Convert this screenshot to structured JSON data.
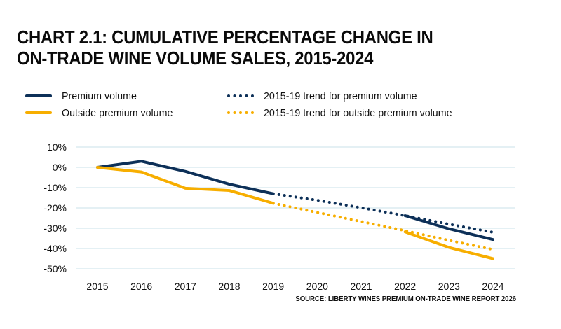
{
  "title": "CHART 2.1: CUMULATIVE PERCENTAGE CHANGE IN ON-TRADE WINE VOLUME SALES, 2015-2024",
  "title_lines": [
    "CHART 2.1: CUMULATIVE PERCENTAGE CHANGE IN",
    "ON-TRADE WINE VOLUME SALES, 2015-2024"
  ],
  "source": "SOURCE: LIBERTY WINES PREMIUM ON-TRADE WINE REPORT 2026",
  "colors": {
    "premium": "#0d3058",
    "outside": "#f7ae00",
    "grid": "#dcecf0"
  },
  "legend": [
    {
      "label": "Premium volume",
      "style": "solid",
      "color": "#0d3058"
    },
    {
      "label": "Outside premium volume",
      "style": "solid",
      "color": "#f7ae00"
    },
    {
      "label": "2015-19 trend for premium volume",
      "style": "dotted",
      "color": "#0d3058"
    },
    {
      "label": "2015-19 trend for outside premium volume",
      "style": "dotted",
      "color": "#f7ae00"
    }
  ],
  "chart_data": {
    "type": "line",
    "title": "Cumulative percentage change in on-trade wine volume sales, 2015-2024",
    "xlabel": "",
    "ylabel": "",
    "x": [
      "2015",
      "2016",
      "2017",
      "2018",
      "2019",
      "2020",
      "2021",
      "2022",
      "2023",
      "2024"
    ],
    "yticks": [
      "10%",
      "0%",
      "-10%",
      "-20%",
      "-30%",
      "-40%",
      "-50%"
    ],
    "ytick_values": [
      10,
      0,
      -10,
      -20,
      -30,
      -40,
      -50
    ],
    "ylim": [
      -50,
      10
    ],
    "grid": true,
    "legend_position": "top",
    "series": [
      {
        "name": "Premium volume",
        "style": "solid",
        "color": "#0d3058",
        "values": [
          0,
          3,
          -2,
          -8.3,
          -13,
          null,
          null,
          -23.8,
          -30.3,
          -35.6
        ]
      },
      {
        "name": "Outside premium volume",
        "style": "solid",
        "color": "#f7ae00",
        "values": [
          0,
          -2.3,
          -10.3,
          -11.4,
          -17.7,
          null,
          null,
          -31.8,
          -39.5,
          -45
        ]
      },
      {
        "name": "2015-19 trend for premium volume",
        "style": "dotted",
        "color": "#0d3058",
        "values": [
          null,
          null,
          null,
          null,
          -13,
          -16.2,
          -19.9,
          -23.8,
          -28,
          -32
        ]
      },
      {
        "name": "2015-19 trend for outside premium volume",
        "style": "dotted",
        "color": "#f7ae00",
        "values": [
          null,
          null,
          null,
          null,
          -17.7,
          -22.2,
          -26.7,
          -31.2,
          -36,
          -40.5
        ]
      }
    ]
  }
}
